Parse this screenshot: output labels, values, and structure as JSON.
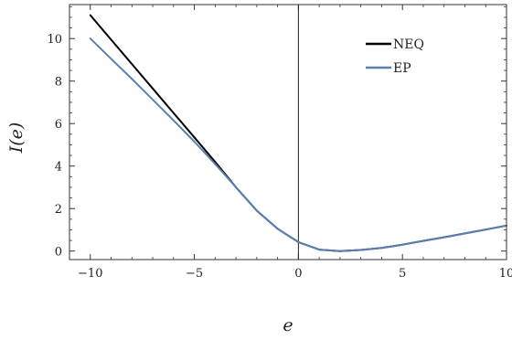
{
  "chart_data": {
    "type": "line",
    "xlabel": "e",
    "ylabel": "I(e)",
    "xlim": [
      -11,
      10
    ],
    "ylim": [
      -0.4,
      11.6
    ],
    "x_ticks": [
      -10,
      -5,
      0,
      5,
      10
    ],
    "y_ticks": [
      0,
      2,
      4,
      6,
      8,
      10
    ],
    "x_minor_step": 1,
    "y_minor_step": 0.5,
    "vertical_reference_line_x": 0,
    "grid": false,
    "frame": true,
    "legend_position": "top-right",
    "series": [
      {
        "name": "NEQ",
        "color": "#000000",
        "x": [
          -10,
          -9,
          -8,
          -7,
          -6,
          -5,
          -4,
          -3,
          -2,
          -1,
          0,
          1,
          2,
          3,
          4,
          5,
          6,
          7,
          8,
          9,
          10
        ],
        "y": [
          11.1,
          9.95,
          8.8,
          7.65,
          6.5,
          5.35,
          4.2,
          3.0,
          1.9,
          1.05,
          0.42,
          0.07,
          0.0,
          0.05,
          0.15,
          0.3,
          0.48,
          0.65,
          0.83,
          1.01,
          1.2
        ]
      },
      {
        "name": "EP",
        "color": "#5b7fb5",
        "x": [
          -10,
          -9,
          -8,
          -7,
          -6,
          -5,
          -4,
          -3,
          -2,
          -1,
          0,
          1,
          2,
          3,
          4,
          5,
          6,
          7,
          8,
          9,
          10
        ],
        "y": [
          10.0,
          9.05,
          8.1,
          7.13,
          6.15,
          5.15,
          4.1,
          3.0,
          1.9,
          1.05,
          0.42,
          0.07,
          0.0,
          0.05,
          0.15,
          0.3,
          0.48,
          0.65,
          0.83,
          1.01,
          1.2
        ]
      }
    ]
  }
}
